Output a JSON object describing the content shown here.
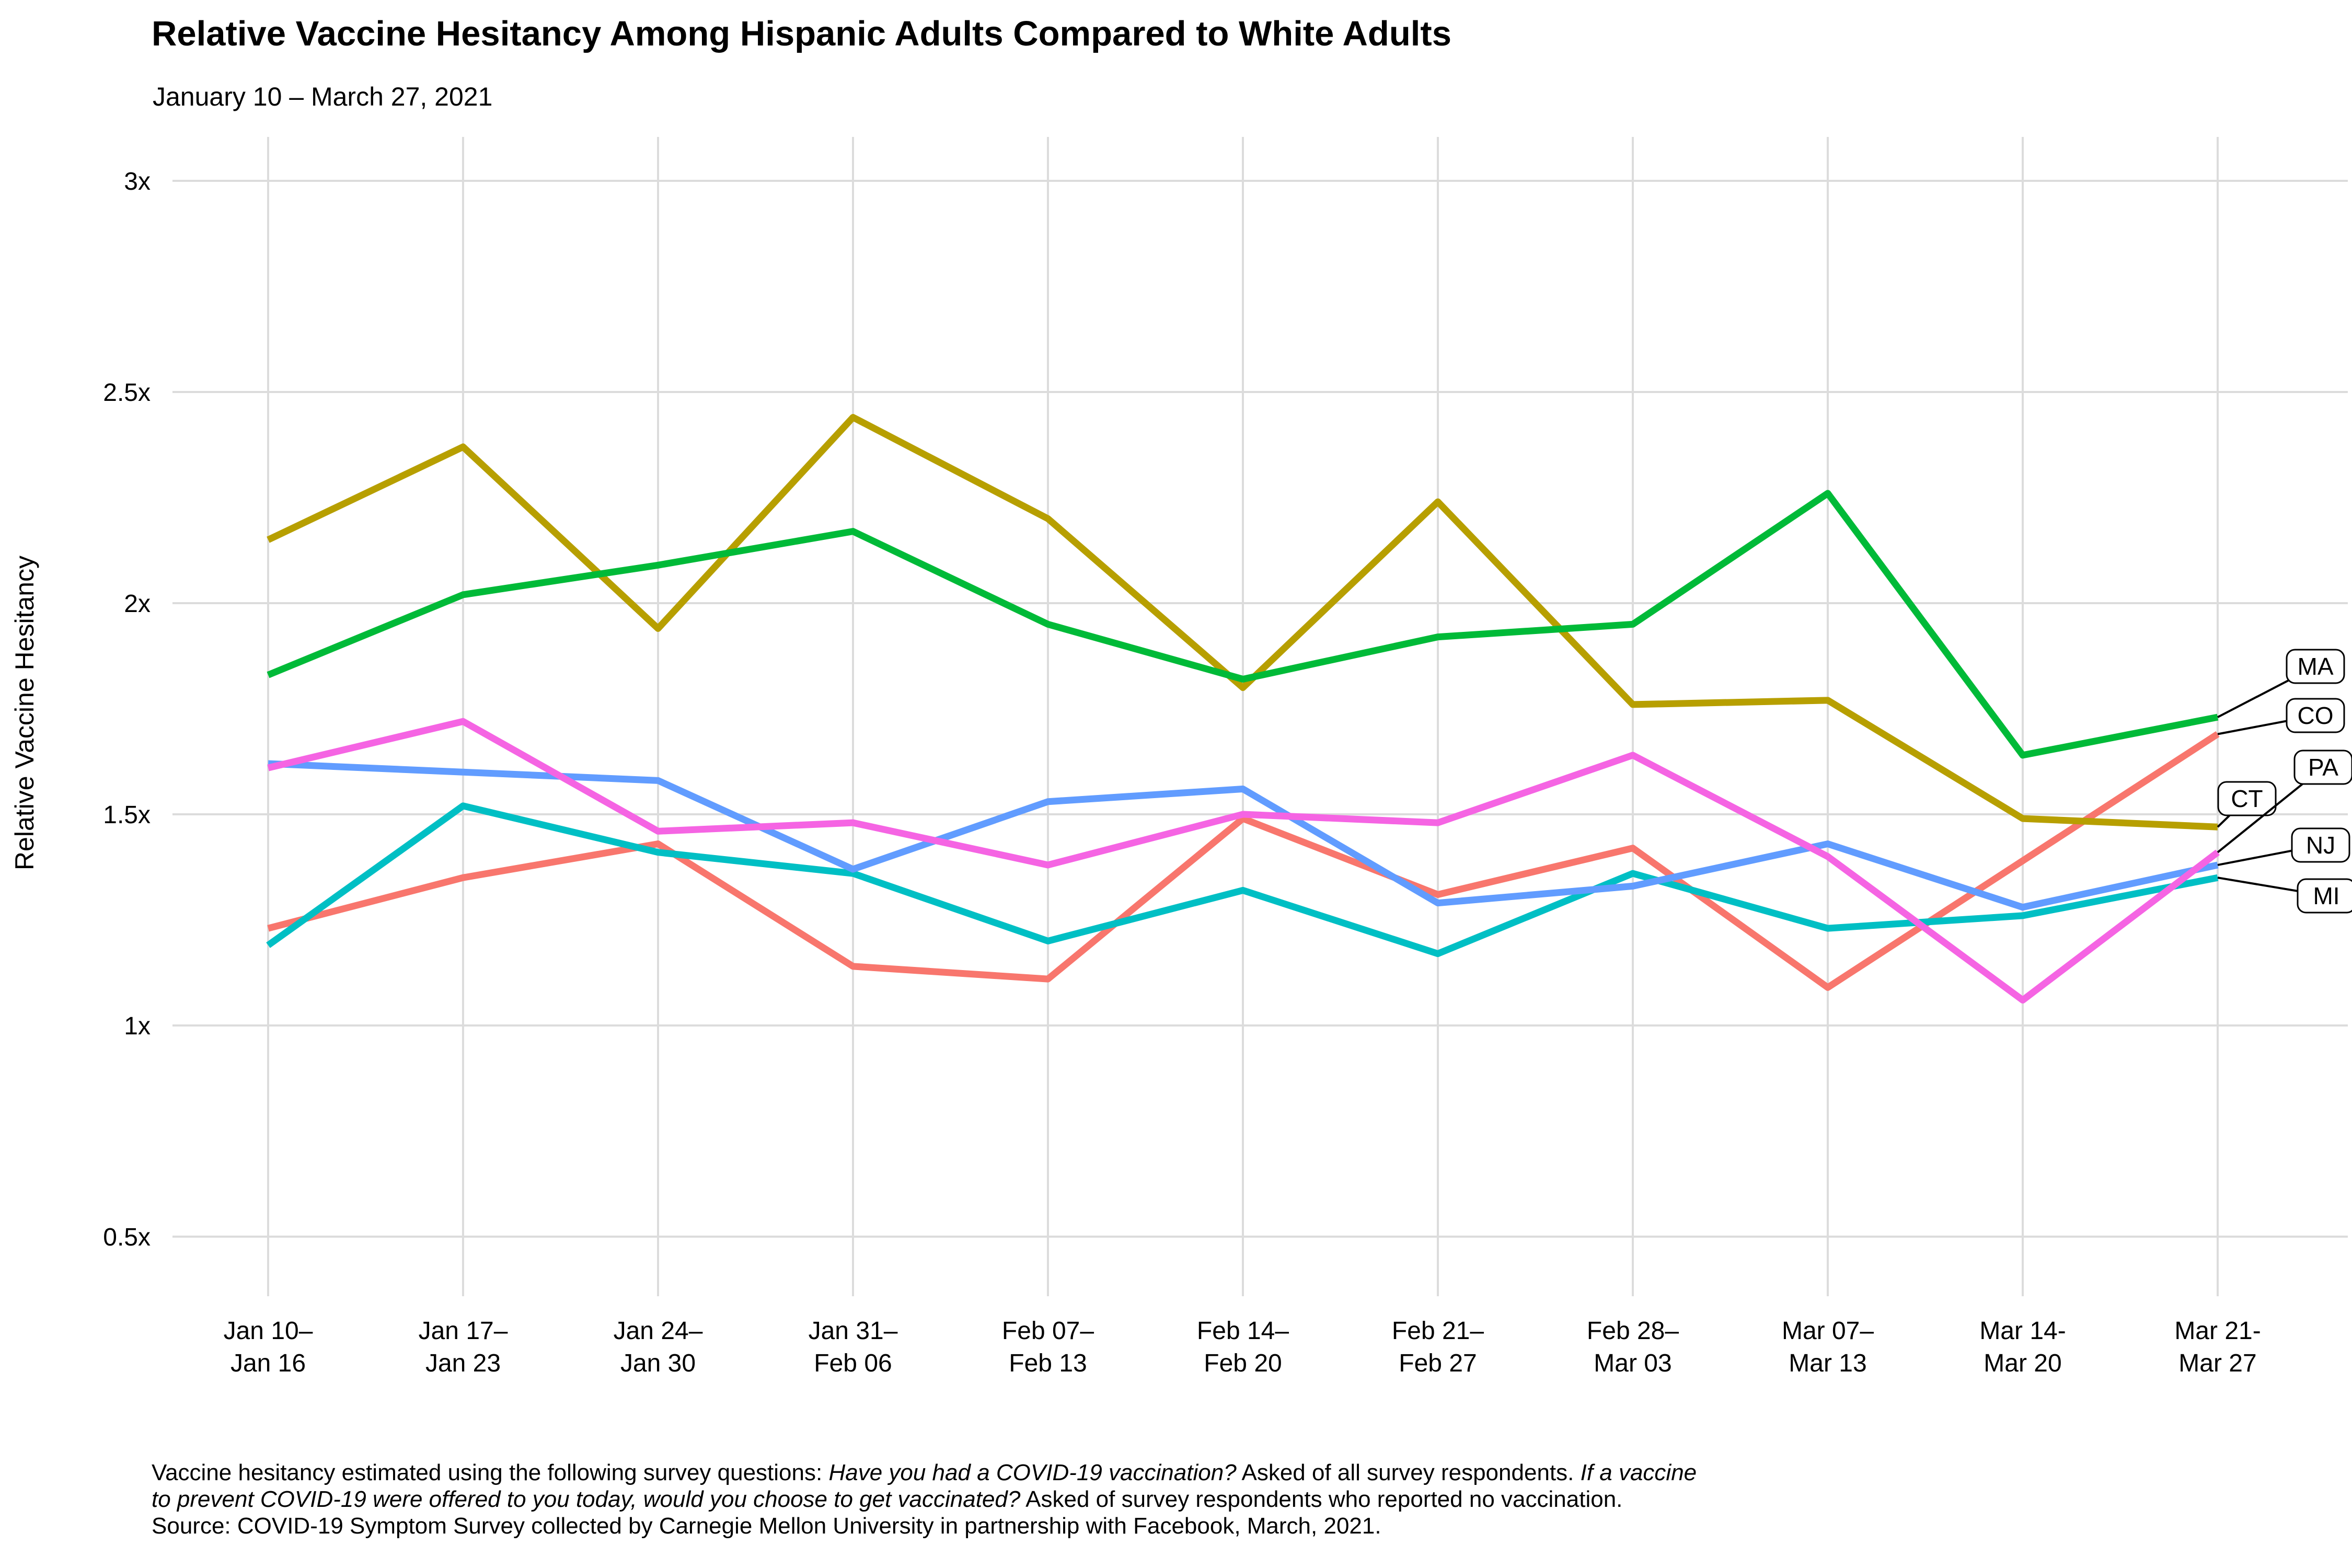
{
  "title": "Relative Vaccine Hesitancy Among Hispanic Adults Compared to White Adults",
  "subtitle": "January 10 – March 27, 2021",
  "y_axis_label": "Relative Vaccine Hesitancy",
  "chart_data": {
    "type": "line",
    "title": "Relative Vaccine Hesitancy Among Hispanic Adults Compared to White Adults",
    "subtitle": "January 10 – March 27, 2021",
    "xlabel": "",
    "ylabel": "Relative Vaccine Hesitancy",
    "ylim": [
      0.35,
      3.1
    ],
    "grid": "on",
    "legend_position": "right-labels",
    "y_ticks": [
      {
        "label": "3x",
        "value": 3.0
      },
      {
        "label": "2.5x",
        "value": 2.5
      },
      {
        "label": "2x",
        "value": 2.0
      },
      {
        "label": "1.5x",
        "value": 1.5
      },
      {
        "label": "1x",
        "value": 1.0
      },
      {
        "label": "0.5x",
        "value": 0.5
      }
    ],
    "categories": [
      [
        "Jan 10–",
        "Jan 16"
      ],
      [
        "Jan 17–",
        "Jan 23"
      ],
      [
        "Jan 24–",
        "Jan 30"
      ],
      [
        "Jan 31–",
        "Feb 06"
      ],
      [
        "Feb 07–",
        "Feb 13"
      ],
      [
        "Feb 14–",
        "Feb 20"
      ],
      [
        "Feb 21–",
        "Feb 27"
      ],
      [
        "Feb 28–",
        "Mar 03"
      ],
      [
        "Mar 07–",
        "Mar 13"
      ],
      [
        "Mar 14-",
        "Mar 20"
      ],
      [
        "Mar 21-",
        "Mar 27"
      ]
    ],
    "series": [
      {
        "name": "CO",
        "color": "#F8766D",
        "values": [
          1.23,
          1.35,
          1.43,
          1.14,
          1.11,
          1.49,
          1.31,
          1.42,
          1.09,
          1.39,
          1.69
        ]
      },
      {
        "name": "CT",
        "color": "#B79F00",
        "values": [
          2.15,
          2.37,
          1.94,
          2.44,
          2.2,
          1.8,
          2.24,
          1.76,
          1.77,
          1.49,
          1.47
        ]
      },
      {
        "name": "MA",
        "color": "#00BA38",
        "values": [
          1.83,
          2.02,
          2.09,
          2.17,
          1.95,
          1.82,
          1.92,
          1.95,
          2.26,
          1.64,
          1.73
        ]
      },
      {
        "name": "MI",
        "color": "#00BFC4",
        "values": [
          1.19,
          1.52,
          1.41,
          1.36,
          1.2,
          1.32,
          1.17,
          1.36,
          1.23,
          1.26,
          1.35
        ]
      },
      {
        "name": "NJ",
        "color": "#619CFF",
        "values": [
          1.62,
          1.6,
          1.58,
          1.37,
          1.53,
          1.56,
          1.29,
          1.33,
          1.43,
          1.28,
          1.38
        ]
      },
      {
        "name": "PA",
        "color": "#F564E3",
        "values": [
          1.61,
          1.72,
          1.46,
          1.48,
          1.38,
          1.5,
          1.48,
          1.64,
          1.4,
          1.06,
          1.41
        ]
      }
    ]
  },
  "footnote": {
    "lines": [
      [
        {
          "text": "Vaccine hesitancy estimated using the following survey questions: ",
          "italic": false
        },
        {
          "text": "Have you had a COVID-19 vaccination?",
          "italic": true
        },
        {
          "text": " Asked of all survey respondents. ",
          "italic": false
        },
        {
          "text": "If a vaccine",
          "italic": true
        }
      ],
      [
        {
          "text": "to prevent COVID-19 were offered to you today, would you choose to get vaccinated?",
          "italic": true
        },
        {
          "text": " Asked of survey respondents who reported no vaccination.",
          "italic": false
        }
      ],
      [
        {
          "text": "Source: COVID-19 Symptom Survey collected by Carnegie Mellon University in partnership with Facebook, March, 2021.",
          "italic": false
        }
      ]
    ]
  }
}
